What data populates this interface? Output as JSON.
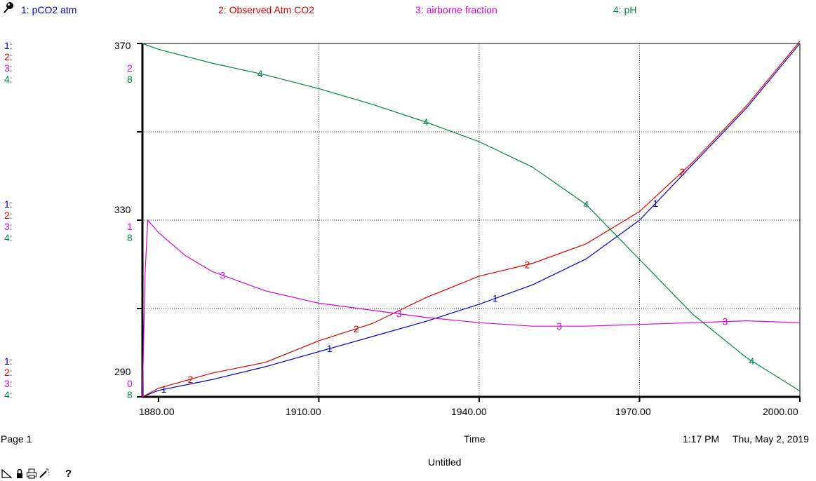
{
  "colors": {
    "pco2": "#0000cc",
    "observed": "#dd0000",
    "airborne": "#dd00dd",
    "ph": "#008844"
  },
  "legend": [
    {
      "label": "1: pCO2 atm",
      "color": "#0000cc"
    },
    {
      "label": "2: Observed Atm CO2",
      "color": "#dd0000"
    },
    {
      "label": "3: airborne fraction",
      "color": "#dd00dd"
    },
    {
      "label": "4: pH",
      "color": "#008844"
    }
  ],
  "scales": {
    "top": {
      "s1": "1:",
      "s2": "2:",
      "s3": "3:",
      "s4": "4:",
      "v12": "370",
      "v3": "2",
      "v4": "8"
    },
    "mid": {
      "s1": "1:",
      "s2": "2:",
      "s3": "3:",
      "s4": "4:",
      "v12": "330",
      "v3": "1",
      "v4": "8"
    },
    "bot": {
      "s1": "1:",
      "s2": "2:",
      "s3": "3:",
      "s4": "4:",
      "v12": "290",
      "v3": "0",
      "v4": "8"
    }
  },
  "footer": {
    "page": "Page 1",
    "xlabel": "Time",
    "time": "1:17 PM",
    "date": "Thu, May 2, 2019",
    "doc_title": "Untitled"
  },
  "toolbar": {
    "icons": [
      "pin-icon",
      "lock-icon",
      "print-icon",
      "wand-icon"
    ],
    "help_label": "?"
  },
  "chart_data": {
    "type": "line",
    "xlabel": "Time",
    "xlim": [
      1877,
      2000
    ],
    "x_ticks": [
      "1880.00",
      "1910.00",
      "1940.00",
      "1970.00",
      "2000.00"
    ],
    "series": [
      {
        "name": "1: pCO2 atm",
        "marker": "1",
        "ylim": [
          288,
          370
        ],
        "x": [
          1877,
          1880,
          1890,
          1900,
          1910,
          1920,
          1930,
          1940,
          1950,
          1960,
          1970,
          1980,
          1990,
          2000
        ],
        "y": [
          288,
          289.5,
          292,
          295,
          298.5,
          302,
          305.5,
          309.5,
          314,
          320,
          329,
          342,
          355,
          370
        ]
      },
      {
        "name": "2: Observed Atm CO2",
        "marker": "2",
        "ylim": [
          288,
          370
        ],
        "x": [
          1877,
          1880,
          1890,
          1900,
          1910,
          1920,
          1930,
          1940,
          1950,
          1960,
          1970,
          1980,
          1990,
          2000
        ],
        "y": [
          288,
          290,
          293.5,
          296,
          301,
          305,
          311,
          316,
          319,
          323.5,
          331,
          342.5,
          355.5,
          370.5
        ]
      },
      {
        "name": "3: airborne fraction",
        "marker": "3",
        "ylim": [
          0,
          2
        ],
        "x": [
          1877,
          1877.5,
          1878,
          1880,
          1885,
          1890,
          1900,
          1910,
          1920,
          1930,
          1940,
          1950,
          1960,
          1970,
          1980,
          1990,
          2000
        ],
        "y": [
          0,
          0.7,
          1.0,
          0.93,
          0.8,
          0.71,
          0.6,
          0.53,
          0.49,
          0.45,
          0.42,
          0.4,
          0.4,
          0.41,
          0.42,
          0.43,
          0.42
        ]
      },
      {
        "name": "4: pH",
        "marker": "4",
        "ylim": [
          7.97,
          8.15
        ],
        "x": [
          1877,
          1880,
          1890,
          1900,
          1910,
          1920,
          1930,
          1940,
          1950,
          1960,
          1970,
          1980,
          1990,
          2000
        ],
        "y": [
          8.15,
          8.147,
          8.14,
          8.134,
          8.127,
          8.119,
          8.11,
          8.1,
          8.087,
          8.068,
          8.04,
          8.012,
          7.99,
          7.973
        ]
      }
    ]
  }
}
